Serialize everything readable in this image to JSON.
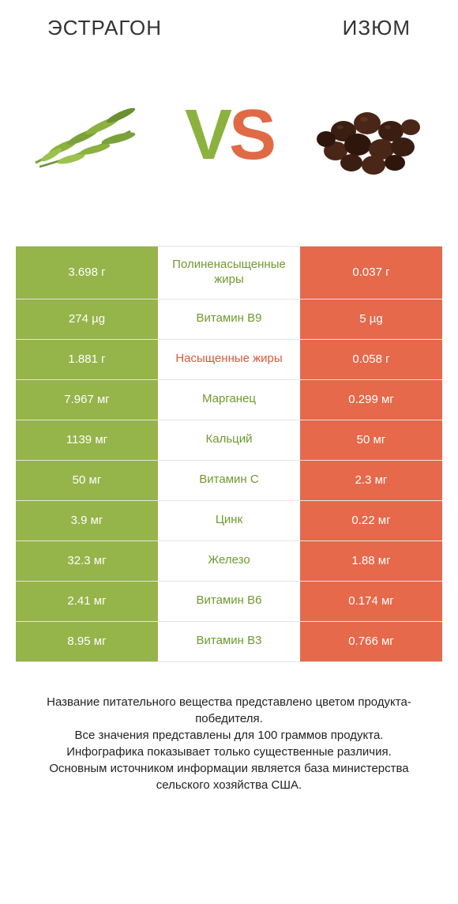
{
  "header": {
    "left_title": "ЭСТРАГОН",
    "right_title": "ИЗЮМ"
  },
  "vs": {
    "v": "V",
    "s": "S"
  },
  "colors": {
    "left_bg": "#95b44a",
    "right_bg": "#e5694a",
    "mid_left_text": "#6f9a2e",
    "mid_right_text": "#d95a3b",
    "border": "#e5e5e5"
  },
  "rows": [
    {
      "left": "3.698 г",
      "label": "Полиненасыщенные жиры",
      "label_side": "left",
      "right": "0.037 г"
    },
    {
      "left": "274 µg",
      "label": "Витамин B9",
      "label_side": "left",
      "right": "5 µg"
    },
    {
      "left": "1.881 г",
      "label": "Насыщенные жиры",
      "label_side": "right",
      "right": "0.058 г"
    },
    {
      "left": "7.967 мг",
      "label": "Марганец",
      "label_side": "left",
      "right": "0.299 мг"
    },
    {
      "left": "1139 мг",
      "label": "Кальций",
      "label_side": "left",
      "right": "50 мг"
    },
    {
      "left": "50 мг",
      "label": "Витамин C",
      "label_side": "left",
      "right": "2.3 мг"
    },
    {
      "left": "3.9 мг",
      "label": "Цинк",
      "label_side": "left",
      "right": "0.22 мг"
    },
    {
      "left": "32.3 мг",
      "label": "Железо",
      "label_side": "left",
      "right": "1.88 мг"
    },
    {
      "left": "2.41 мг",
      "label": "Витамин B6",
      "label_side": "left",
      "right": "0.174 мг"
    },
    {
      "left": "8.95 мг",
      "label": "Витамин B3",
      "label_side": "left",
      "right": "0.766 мг"
    }
  ],
  "footer": "Название питательного вещества представлено цветом продукта-победителя.\nВсе значения представлены для 100 граммов продукта.\nИнфографика показывает только существенные различия.\nОсновным источником информации является база министерства сельского хозяйства США."
}
